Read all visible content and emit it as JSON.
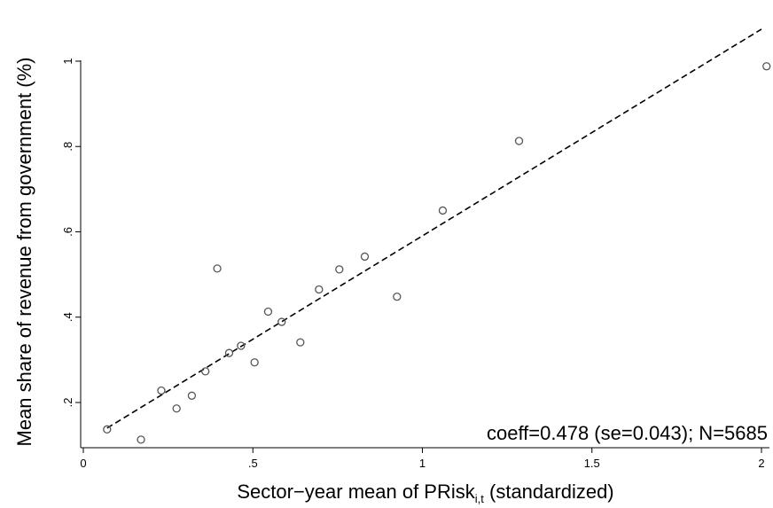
{
  "chart_data": {
    "type": "scatter",
    "xlabel_parts": [
      "Sector−year mean of PRisk",
      "i,t",
      " (standardized)"
    ],
    "ylabel": "Mean share of revenue from government (%)",
    "annotation": "coeff=0.478 (se=0.043); N=5685",
    "xlim": [
      0,
      2.02
    ],
    "ylim": [
      0.1,
      1.08
    ],
    "x_ticks": [
      {
        "value": 0,
        "label": "0"
      },
      {
        "value": 0.5,
        "label": ".5"
      },
      {
        "value": 1,
        "label": "1"
      },
      {
        "value": 1.5,
        "label": "1.5"
      },
      {
        "value": 2,
        "label": "2"
      }
    ],
    "y_ticks": [
      {
        "value": 0.2,
        "label": ".2"
      },
      {
        "value": 0.4,
        "label": ".4"
      },
      {
        "value": 0.6,
        "label": ".6"
      },
      {
        "value": 0.8,
        "label": ".8"
      },
      {
        "value": 1,
        "label": "1"
      }
    ],
    "points": [
      {
        "x": 0.07,
        "y": 0.137
      },
      {
        "x": 0.17,
        "y": 0.113
      },
      {
        "x": 0.23,
        "y": 0.228
      },
      {
        "x": 0.275,
        "y": 0.186
      },
      {
        "x": 0.32,
        "y": 0.216
      },
      {
        "x": 0.36,
        "y": 0.273
      },
      {
        "x": 0.395,
        "y": 0.514
      },
      {
        "x": 0.43,
        "y": 0.316
      },
      {
        "x": 0.465,
        "y": 0.333
      },
      {
        "x": 0.505,
        "y": 0.294
      },
      {
        "x": 0.545,
        "y": 0.413
      },
      {
        "x": 0.585,
        "y": 0.389
      },
      {
        "x": 0.64,
        "y": 0.341
      },
      {
        "x": 0.695,
        "y": 0.465
      },
      {
        "x": 0.755,
        "y": 0.512
      },
      {
        "x": 0.83,
        "y": 0.542
      },
      {
        "x": 0.925,
        "y": 0.448
      },
      {
        "x": 1.06,
        "y": 0.65
      },
      {
        "x": 1.285,
        "y": 0.813
      },
      {
        "x": 2.015,
        "y": 0.988
      }
    ],
    "fit_line": {
      "x": [
        0.07,
        2.0
      ],
      "y": [
        0.14,
        1.075
      ],
      "style": "dashed"
    },
    "grid": false,
    "marker": "hollow-circle"
  }
}
